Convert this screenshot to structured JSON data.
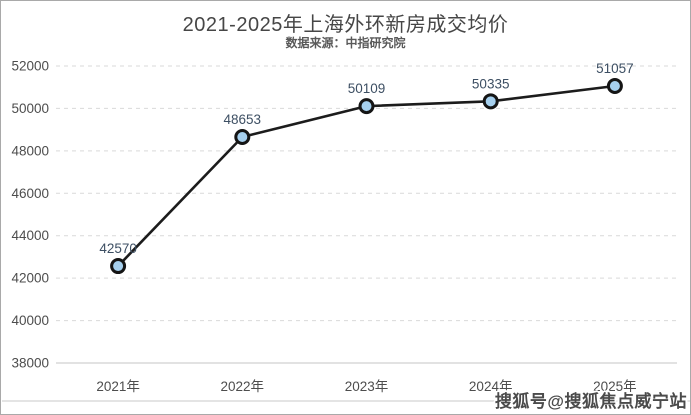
{
  "header": {
    "title": "2021-2025年上海外环新房成交均价",
    "subtitle": "数据来源：中指研究院"
  },
  "watermark": {
    "text": "搜狐号@搜狐焦点威宁站"
  },
  "chart_data": {
    "type": "line",
    "title": "2021-2025年上海外环新房成交均价",
    "subtitle": "数据来源：中指研究院",
    "categories": [
      "2021年",
      "2022年",
      "2023年",
      "2024年",
      "2025年"
    ],
    "values": [
      42570,
      48653,
      50109,
      50335,
      51057
    ],
    "xlabel": "",
    "ylabel": "",
    "ylim": [
      38000,
      52000
    ],
    "ytick_step": 2000,
    "yticks": [
      38000,
      40000,
      42000,
      44000,
      46000,
      48000,
      50000,
      52000
    ],
    "grid": "horizontal-dashed",
    "legend": "none",
    "colors": {
      "line": "#1c1c1c",
      "marker_fill": "#a6d0ee",
      "marker_stroke": "#151515",
      "data_label": "#3d4f63",
      "axis_text": "#4d4d4d",
      "grid_line": "#d9d9d9",
      "axis_line": "#c6c6c6",
      "separator_line": "#c9c9c9"
    }
  }
}
